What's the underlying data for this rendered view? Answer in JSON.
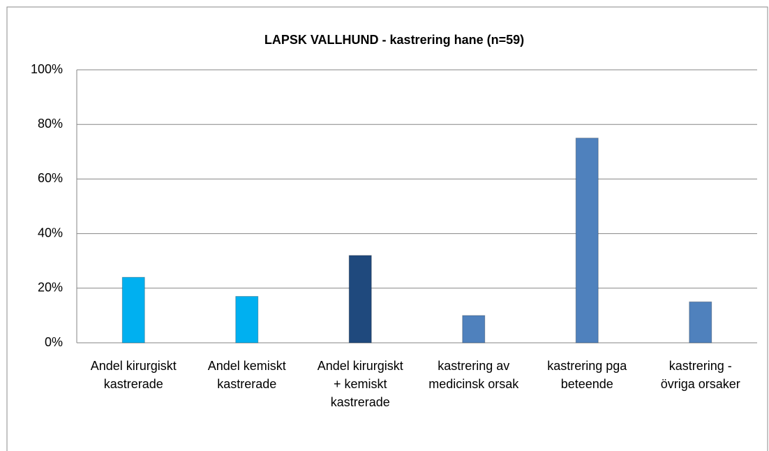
{
  "chart_data": {
    "type": "bar",
    "title": "LAPSK VALLHUND - kastrering hane (n=59)",
    "categories": [
      "Andel kirurgiskt kastrerade",
      "Andel kemiskt kastrerade",
      "Andel kirurgiskt + kemiskt kastrerade",
      "kastrering av medicinsk orsak",
      "kastrering pga beteende",
      "kastrering - övriga orsaker"
    ],
    "values": [
      24,
      17,
      32,
      10,
      75,
      15
    ],
    "colors": [
      "#00b0f0",
      "#00b0f0",
      "#1f497d",
      "#4f81bd",
      "#4f81bd",
      "#4f81bd"
    ],
    "ylim": [
      0,
      100
    ],
    "yticks": [
      {
        "value": 0,
        "label": "0%"
      },
      {
        "value": 20,
        "label": "20%"
      },
      {
        "value": 40,
        "label": "40%"
      },
      {
        "value": 60,
        "label": "60%"
      },
      {
        "value": 80,
        "label": "80%"
      },
      {
        "value": 100,
        "label": "100%"
      }
    ],
    "grid": true
  }
}
